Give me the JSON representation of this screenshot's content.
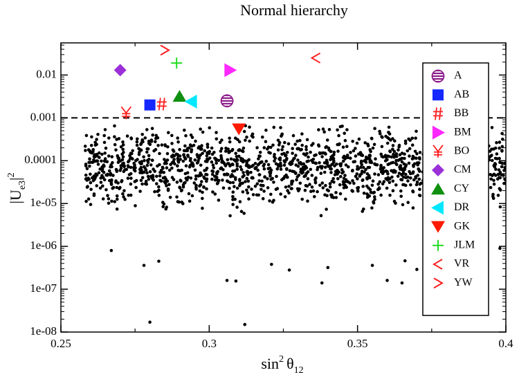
{
  "chart_data": {
    "type": "scatter",
    "title": "Normal hierarchy",
    "xlabel": {
      "base": "sin",
      "sup": "2",
      "theta": "θ",
      "sub": "12"
    },
    "ylabel": {
      "pipe1": "|U",
      "sub": "e3",
      "pipe2": "|",
      "sup": "2"
    },
    "xlim": [
      0.25,
      0.4
    ],
    "ylim_log10": [
      -8,
      -1.25
    ],
    "yscale": "log",
    "x_ticks": [
      0.25,
      0.3,
      0.35,
      0.4
    ],
    "x_tick_labels": [
      "0.25",
      "0.3",
      "0.35",
      "0.4"
    ],
    "y_ticks": [
      1e-08,
      1e-07,
      1e-06,
      1e-05,
      0.0001,
      0.001,
      0.01
    ],
    "y_tick_labels": [
      "1e-08",
      "1e-07",
      "1e-06",
      "1e-05",
      "0.0001",
      "0.001",
      "0.01"
    ],
    "reference_line": {
      "y": 0.001,
      "style": "dashed"
    },
    "scan_points": {
      "description_count": 1600,
      "x_range": [
        0.258,
        0.401
      ],
      "seed": 12345,
      "color": "#000000",
      "outliers": [
        {
          "x": 0.28,
          "y": 1.7e-08
        },
        {
          "x": 0.312,
          "y": 1.5e-08
        },
        {
          "x": 0.306,
          "y": 1.6e-07
        },
        {
          "x": 0.309,
          "y": 1.55e-07
        },
        {
          "x": 0.36,
          "y": 1.6e-07
        },
        {
          "x": 0.365,
          "y": 1.4e-07
        },
        {
          "x": 0.338,
          "y": 1.4e-07
        },
        {
          "x": 0.327,
          "y": 2.8e-07
        },
        {
          "x": 0.34,
          "y": 3.2e-07
        },
        {
          "x": 0.278,
          "y": 3.6e-07
        },
        {
          "x": 0.321,
          "y": 3.8e-07
        },
        {
          "x": 0.355,
          "y": 3.6e-07
        },
        {
          "x": 0.366,
          "y": 4.6e-07
        },
        {
          "x": 0.393,
          "y": 3.8e-07
        },
        {
          "x": 0.283,
          "y": 4.5e-07
        },
        {
          "x": 0.37,
          "y": 2.9e-07
        },
        {
          "x": 0.267,
          "y": 8e-07
        },
        {
          "x": 0.398,
          "y": 9e-07
        }
      ]
    },
    "series": [
      {
        "name": "A",
        "marker": "striped-circle",
        "color": "#8b1a89",
        "x": 0.306,
        "y": 0.0025
      },
      {
        "name": "AB",
        "marker": "square",
        "color": "#1428ff",
        "x": 0.28,
        "y": 0.002
      },
      {
        "name": "BB",
        "marker": "hash",
        "color": "#ff1e1e",
        "x": 0.284,
        "y": 0.0021
      },
      {
        "name": "BM",
        "marker": "triangle-right",
        "color": "#ff28ff",
        "x": 0.307,
        "y": 0.013
      },
      {
        "name": "BO",
        "marker": "yen",
        "color": "#ff1e1e",
        "x": 0.272,
        "y": 0.0013
      },
      {
        "name": "CM",
        "marker": "diamond",
        "color": "#9b30d8",
        "x": 0.27,
        "y": 0.013
      },
      {
        "name": "CY",
        "marker": "triangle-up",
        "color": "#109010",
        "x": 0.29,
        "y": 0.0032
      },
      {
        "name": "DR",
        "marker": "triangle-left",
        "color": "#00e8ff",
        "x": 0.294,
        "y": 0.0024
      },
      {
        "name": "GK",
        "marker": "triangle-down",
        "color": "#ff1a00",
        "x": 0.31,
        "y": 0.00055
      },
      {
        "name": "JLM",
        "marker": "plus",
        "color": "#22dd22",
        "x": 0.289,
        "y": 0.019
      },
      {
        "name": "VR",
        "marker": "less-than",
        "color": "#ff1e1e",
        "x": 0.336,
        "y": 0.025
      },
      {
        "name": "YW",
        "marker": "greater-than",
        "color": "#ff1e1e",
        "x": 0.285,
        "y": 0.038
      }
    ],
    "legend_placement": "right",
    "grid": false
  }
}
